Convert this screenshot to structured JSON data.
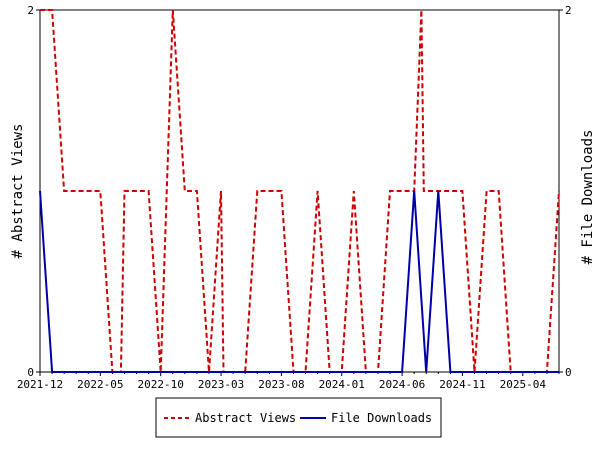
{
  "chart_data": {
    "type": "line",
    "y_left_label": "# Abstract Views",
    "y_right_label": "# File Downloads",
    "x_tick_labels": [
      "2021-12",
      "2022-05",
      "2022-10",
      "2023-03",
      "2023-08",
      "2024-01",
      "2024-06",
      "2024-11",
      "2025-04"
    ],
    "y_left_ticks": [
      "0",
      "2"
    ],
    "y_right_ticks": [
      "0",
      "2"
    ],
    "ylim": [
      0,
      2
    ],
    "x_range_months": [
      0,
      43
    ],
    "legend_placement": "bottom-center",
    "series": [
      {
        "name": "Abstract Views",
        "axis": "left",
        "color": "#cc0000",
        "style": "dashed",
        "x": [
          0,
          1,
          2,
          3,
          4,
          5,
          6,
          6.7,
          7,
          8,
          9,
          10,
          11,
          12,
          13,
          14,
          15,
          15.2,
          16,
          17,
          18,
          19,
          20,
          21,
          22,
          23,
          24,
          25,
          26,
          27,
          28,
          29,
          30,
          31,
          31.6,
          31.8,
          32,
          33,
          34,
          35,
          36,
          37,
          38,
          39,
          40,
          41,
          42,
          43
        ],
        "values": [
          2,
          2,
          1,
          1,
          1,
          1,
          0,
          0,
          1,
          1,
          1,
          0,
          2,
          1,
          1,
          0,
          1,
          0,
          0,
          0,
          1,
          1,
          1,
          0,
          0,
          1,
          0,
          0,
          1,
          0,
          0,
          1,
          1,
          1,
          2,
          1,
          1,
          1,
          1,
          1,
          0,
          1,
          1,
          0,
          0,
          0,
          0,
          1
        ]
      },
      {
        "name": "File Downloads",
        "axis": "right",
        "color": "#0000aa",
        "style": "solid",
        "x": [
          0,
          1,
          2,
          3,
          4,
          5,
          6,
          7,
          8,
          9,
          10,
          11,
          12,
          13,
          14,
          15,
          16,
          17,
          18,
          19,
          20,
          21,
          22,
          23,
          24,
          25,
          26,
          27,
          28,
          29,
          30,
          31,
          32,
          33,
          34,
          35,
          36,
          37,
          38,
          39,
          40,
          41,
          42,
          43
        ],
        "values": [
          1,
          0,
          0,
          0,
          0,
          0,
          0,
          0,
          0,
          0,
          0,
          0,
          0,
          0,
          0,
          0,
          0,
          0,
          0,
          0,
          0,
          0,
          0,
          0,
          0,
          0,
          0,
          0,
          0,
          0,
          0,
          1,
          0,
          1,
          0,
          0,
          0,
          0,
          0,
          0,
          0,
          0,
          0,
          0
        ]
      }
    ]
  }
}
